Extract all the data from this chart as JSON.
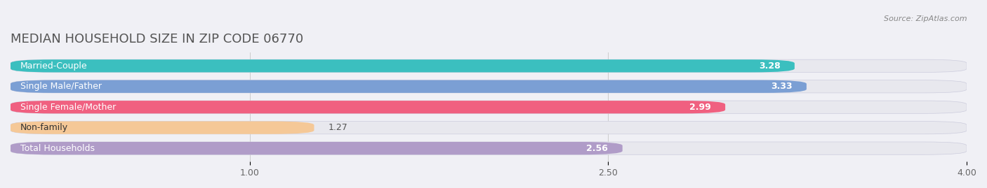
{
  "title": "MEDIAN HOUSEHOLD SIZE IN ZIP CODE 06770",
  "source": "Source: ZipAtlas.com",
  "categories": [
    "Married-Couple",
    "Single Male/Father",
    "Single Female/Mother",
    "Non-family",
    "Total Households"
  ],
  "values": [
    3.28,
    3.33,
    2.99,
    1.27,
    2.56
  ],
  "bar_colors": [
    "#3bbfbf",
    "#7b9fd4",
    "#f06080",
    "#f5c897",
    "#b09cc8"
  ],
  "bar_edge_colors": [
    "#2aa8a8",
    "#6a8ec3",
    "#df4f6f",
    "#e4b786",
    "#9f8bb7"
  ],
  "xlim": [
    0,
    4.0
  ],
  "xticks": [
    1.0,
    2.5,
    4.0
  ],
  "background_color": "#f0f0f5",
  "bar_background_color": "#e8e8ee",
  "title_fontsize": 13,
  "label_fontsize": 9,
  "value_fontsize": 9,
  "bar_height": 0.62
}
